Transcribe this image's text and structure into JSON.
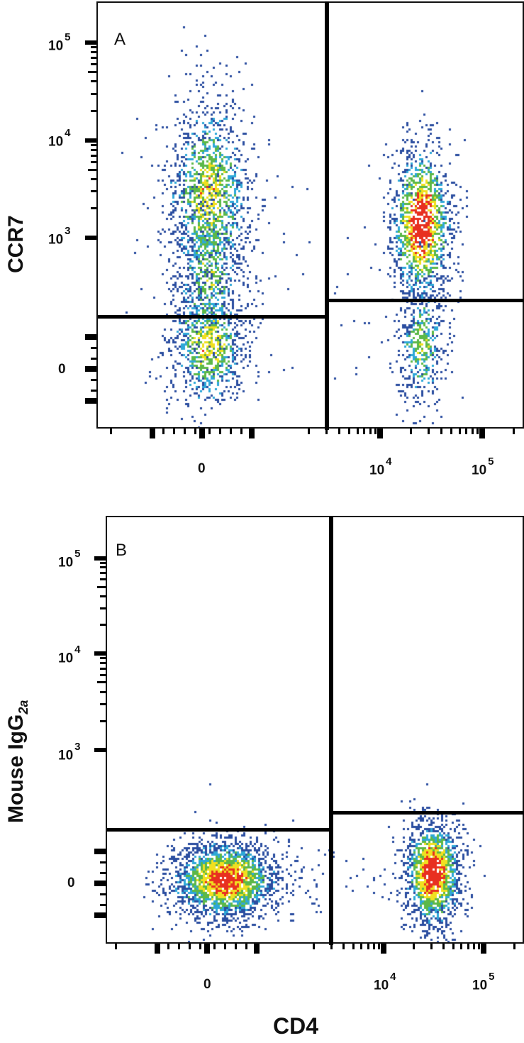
{
  "figure": {
    "x_axis_title": "CD4",
    "panels": [
      {
        "letter": "A",
        "y_axis_title": "CCR7",
        "y_subscript": "",
        "y_ticks": [
          {
            "base": "10",
            "exp": "5"
          },
          {
            "base": "10",
            "exp": "4"
          },
          {
            "base": "10",
            "exp": "3"
          },
          {
            "base": "0",
            "exp": ""
          }
        ],
        "x_ticks": [
          {
            "base": "0",
            "exp": ""
          },
          {
            "base": "10",
            "exp": "4"
          },
          {
            "base": "10",
            "exp": "5"
          }
        ]
      },
      {
        "letter": "B",
        "y_axis_title": "Mouse IgG",
        "y_subscript": "2a",
        "y_ticks": [
          {
            "base": "10",
            "exp": "5"
          },
          {
            "base": "10",
            "exp": "4"
          },
          {
            "base": "10",
            "exp": "3"
          },
          {
            "base": "0",
            "exp": ""
          }
        ],
        "x_ticks": [
          {
            "base": "0",
            "exp": ""
          },
          {
            "base": "10",
            "exp": "4"
          },
          {
            "base": "10",
            "exp": "5"
          }
        ]
      }
    ],
    "colors": {
      "low": "#2b4ea0",
      "mid_low": "#2ea8d8",
      "mid": "#5cb848",
      "mid_high": "#f0e020",
      "high": "#e83020",
      "gate": "#000000"
    }
  },
  "chart_data": [
    {
      "type": "scatter",
      "title": "A",
      "xlabel": "CD4",
      "ylabel": "CCR7",
      "x_scale": "biexponential",
      "y_scale": "biexponential",
      "x_tick_labels": [
        "0",
        "10^4",
        "10^5"
      ],
      "y_tick_labels": [
        "0",
        "10^3",
        "10^4",
        "10^5"
      ],
      "quadrant_gates": {
        "vertical_x": "~3x10^3 (between 0 and 10^4)",
        "left_horizontal_y": "~2x10^2",
        "right_horizontal_y": "~3x10^2"
      },
      "populations": [
        {
          "name": "CD4- cells",
          "x_center": "0",
          "y_range": [
            "<0",
            "~5x10^3"
          ],
          "distribution": "bimodal along y: CCR7+ and CCR7-"
        },
        {
          "name": "CD4+ cells",
          "x_center": "~3x10^4",
          "y_center": "~1.3x10^3",
          "density": "highest (red core)",
          "note": "majority CCR7+ above gate"
        }
      ],
      "grid": false,
      "legend": "none"
    },
    {
      "type": "scatter",
      "title": "B",
      "xlabel": "CD4",
      "ylabel": "Mouse IgG2a",
      "x_scale": "biexponential",
      "y_scale": "biexponential",
      "x_tick_labels": [
        "0",
        "10^4",
        "10^5"
      ],
      "y_tick_labels": [
        "0",
        "10^3",
        "10^4",
        "10^5"
      ],
      "quadrant_gates": {
        "vertical_x": "~3x10^3",
        "left_horizontal_y": "~2x10^2",
        "right_horizontal_y": "~3x10^2"
      },
      "populations": [
        {
          "name": "CD4- cells",
          "x_center": "~0",
          "y_center": "0",
          "note": "all below gate (isotype control)"
        },
        {
          "name": "CD4+ cells",
          "x_center": "~3x10^4",
          "y_center": "0",
          "note": "all below gate (isotype control)"
        }
      ],
      "grid": false,
      "legend": "none"
    }
  ]
}
